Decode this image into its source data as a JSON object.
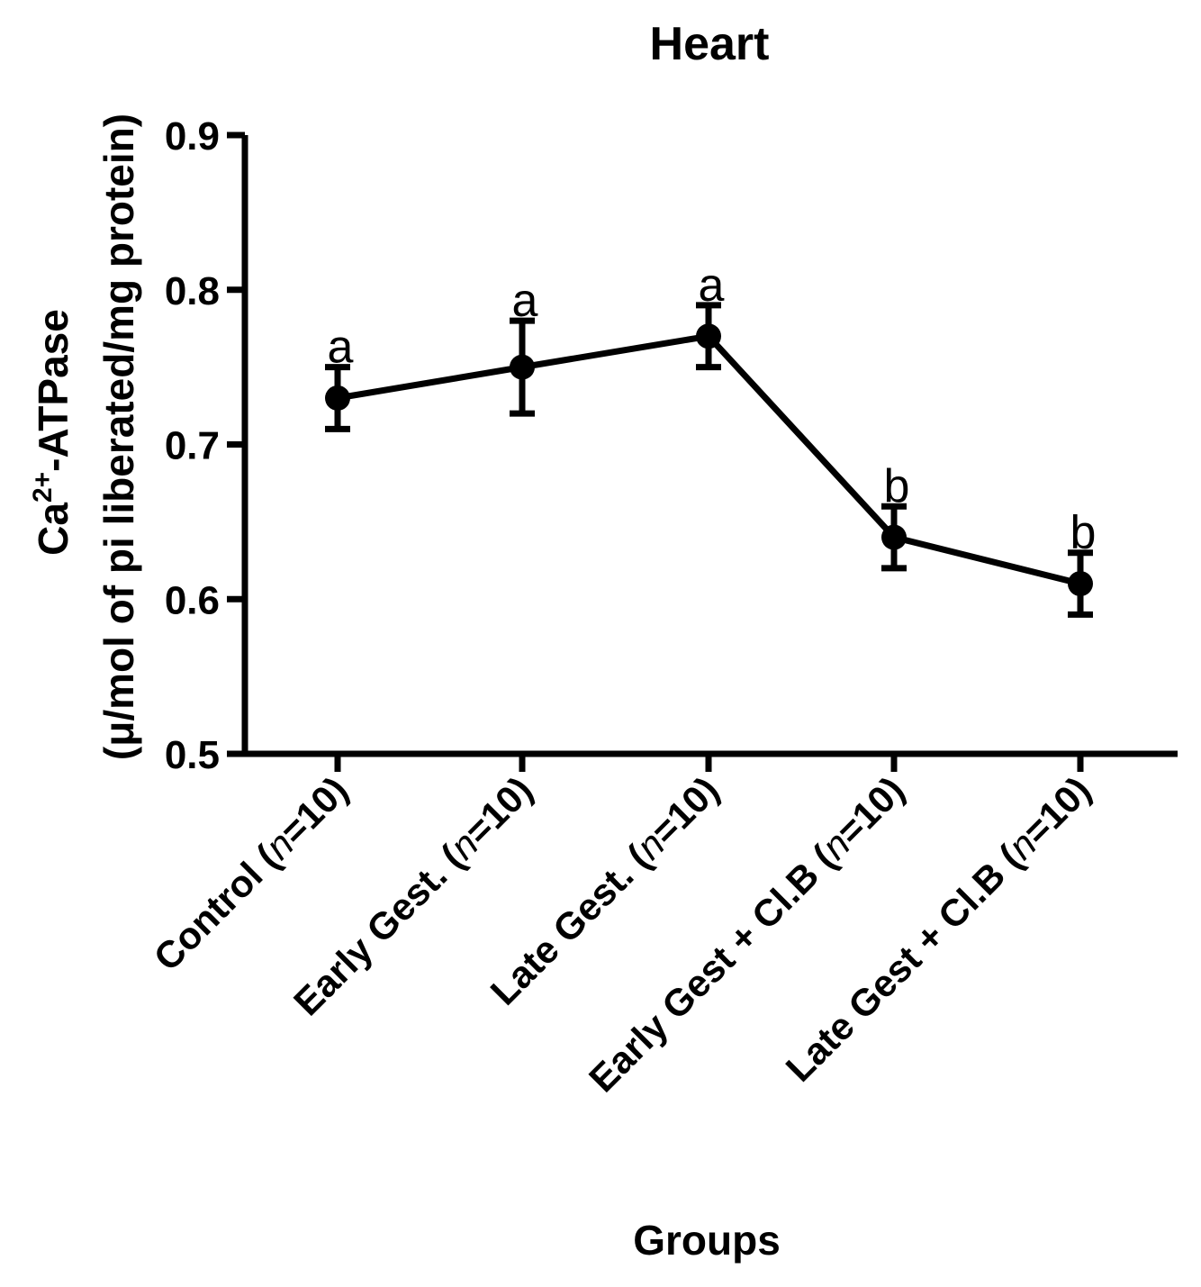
{
  "chart_data": {
    "type": "line",
    "title": "Heart",
    "xlabel": "Groups",
    "ylabel_line1_prefix": "Ca",
    "ylabel_line1_sup": "2+",
    "ylabel_line1_suffix": "-ATPase",
    "ylabel_line2": "(μ/mol of pi liberated/mg protein)",
    "ylim": [
      0.5,
      0.9
    ],
    "yticks": [
      "0.5",
      "0.6",
      "0.7",
      "0.8",
      "0.9"
    ],
    "categories": [
      {
        "name": "Control",
        "n": "n",
        "n_value": "=10)"
      },
      {
        "name": "Early Gest.",
        "n": "n",
        "n_value": "=10)"
      },
      {
        "name": "Late Gest.",
        "n": "n",
        "n_value": "=10)"
      },
      {
        "name": "Early Gest + Cl.B",
        "n": "n",
        "n_value": "=10)"
      },
      {
        "name": "Late Gest + Cl.B",
        "n": "n",
        "n_value": "=10)"
      }
    ],
    "values": [
      0.73,
      0.75,
      0.77,
      0.64,
      0.61
    ],
    "errors": [
      0.02,
      0.03,
      0.02,
      0.02,
      0.02
    ],
    "significance": [
      "a",
      "a",
      "a",
      "b",
      "b"
    ],
    "color": "#000000"
  }
}
